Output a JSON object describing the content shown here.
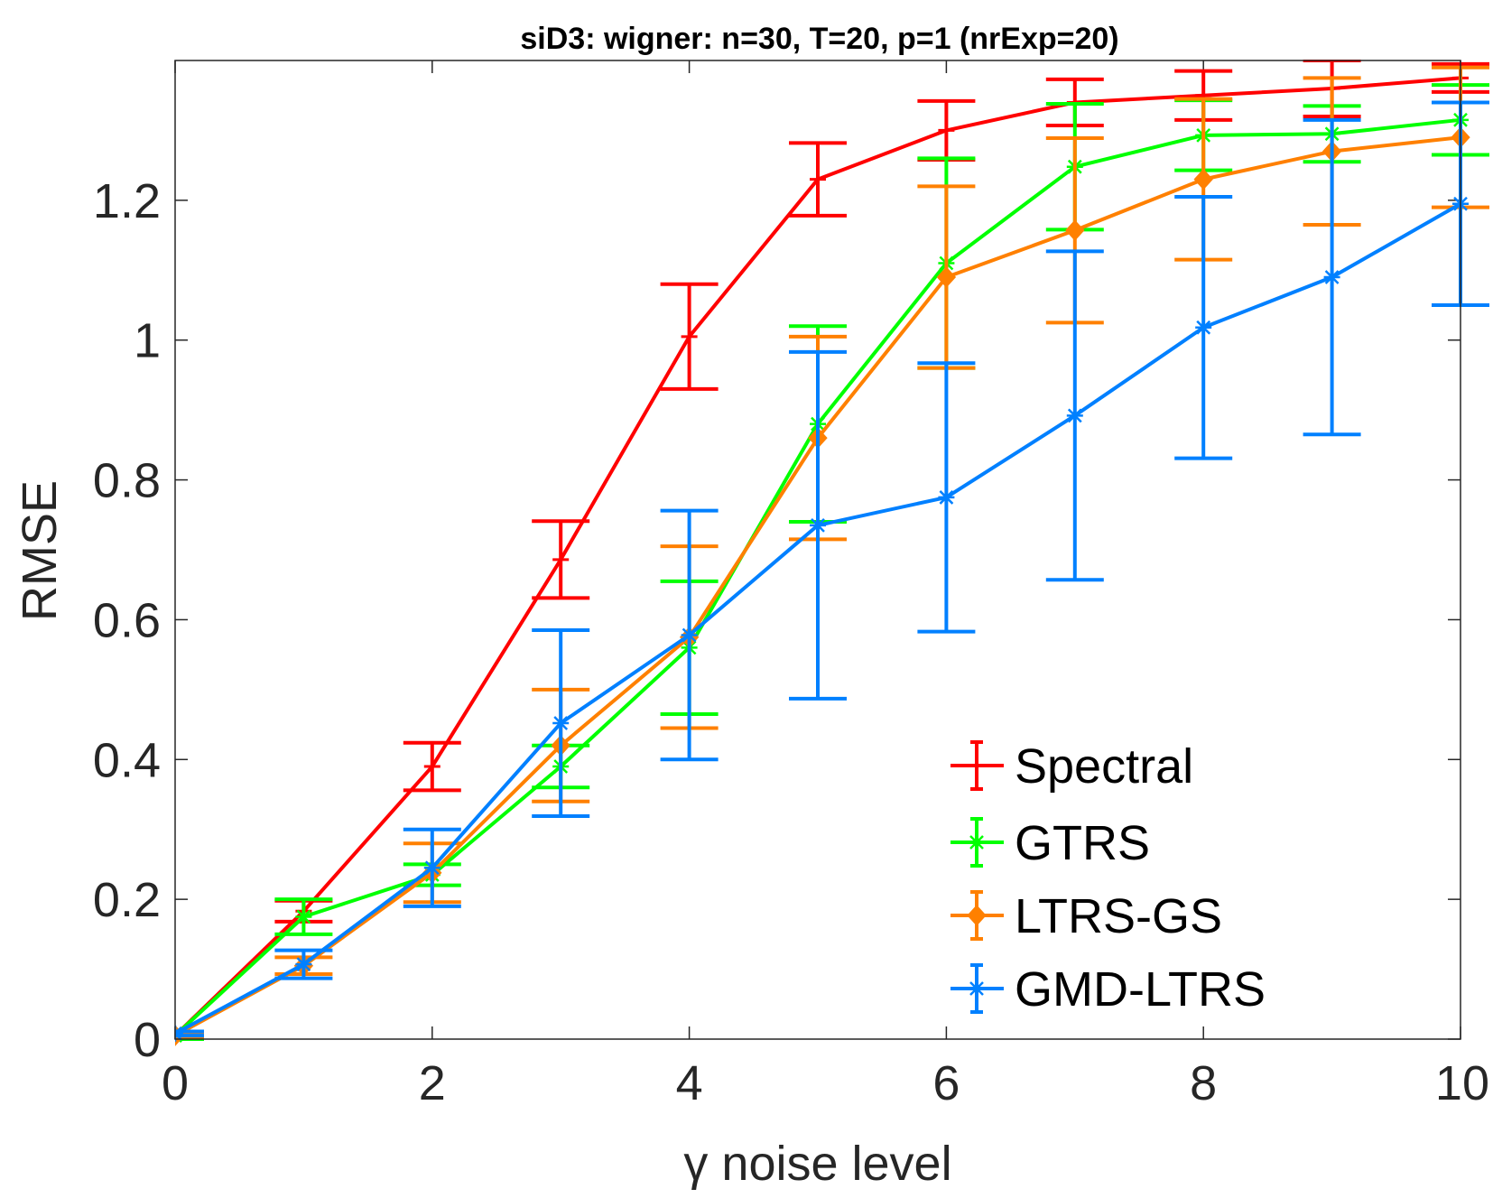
{
  "chart_data": {
    "type": "line",
    "title": "siD3: wigner: n=30, T=20, p=1 (nrExp=20)",
    "xlabel": "γ noise level",
    "ylabel": "RMSE",
    "xlim": [
      0,
      10
    ],
    "ylim": [
      0,
      1.4
    ],
    "xticks": [
      "0",
      "2",
      "4",
      "6",
      "8",
      "10"
    ],
    "yticks": [
      "0",
      "0.2",
      "0.4",
      "0.6",
      "0.8",
      "1",
      "1.2"
    ],
    "x": [
      0,
      1,
      2,
      3,
      4,
      5,
      6,
      7,
      8,
      9,
      10
    ],
    "legend_position": "bottom-right",
    "grid": false,
    "series": [
      {
        "name": "Spectral",
        "color": "#ff0000",
        "marker": "plus",
        "values": [
          0.005,
          0.183,
          0.39,
          0.686,
          1.005,
          1.23,
          1.3,
          1.34,
          1.35,
          1.36,
          1.375
        ],
        "errors": [
          0.003,
          0.015,
          0.034,
          0.055,
          0.075,
          0.052,
          0.042,
          0.033,
          0.035,
          0.04,
          0.02
        ]
      },
      {
        "name": "GTRS",
        "color": "#00ff00",
        "marker": "asterisk",
        "values": [
          0.005,
          0.175,
          0.235,
          0.39,
          0.56,
          0.88,
          1.11,
          1.248,
          1.293,
          1.295,
          1.315
        ],
        "errors": [
          0.005,
          0.025,
          0.015,
          0.03,
          0.095,
          0.14,
          0.15,
          0.09,
          0.05,
          0.04,
          0.05
        ]
      },
      {
        "name": "LTRS-GS",
        "color": "#ff8000",
        "marker": "diamond",
        "values": [
          0.005,
          0.105,
          0.238,
          0.42,
          0.575,
          0.86,
          1.09,
          1.157,
          1.23,
          1.27,
          1.29
        ],
        "errors": [
          0.003,
          0.012,
          0.042,
          0.08,
          0.13,
          0.145,
          0.13,
          0.132,
          0.115,
          0.105,
          0.1
        ]
      },
      {
        "name": "GMD-LTRS",
        "color": "#0080ff",
        "marker": "asterisk",
        "values": [
          0.008,
          0.107,
          0.245,
          0.452,
          0.578,
          0.735,
          0.775,
          0.892,
          1.018,
          1.09,
          1.195
        ],
        "errors": [
          0.003,
          0.02,
          0.055,
          0.133,
          0.178,
          0.248,
          0.192,
          0.235,
          0.187,
          0.225,
          0.145
        ]
      }
    ]
  }
}
